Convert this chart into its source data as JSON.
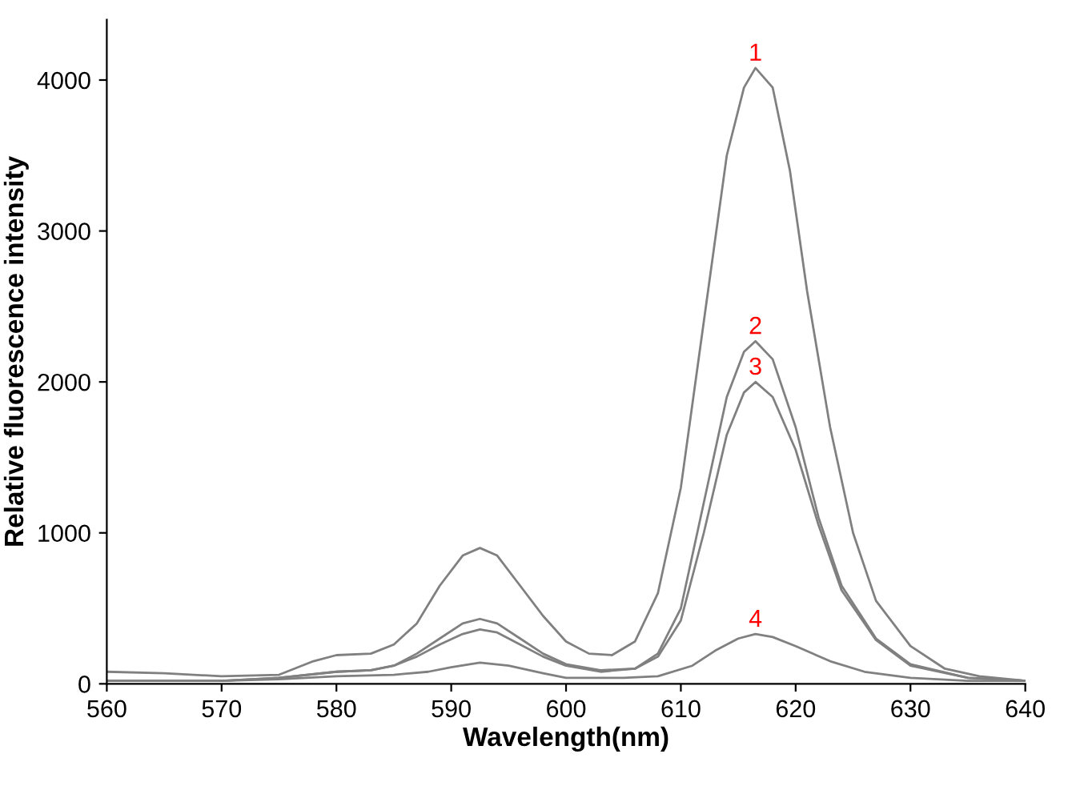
{
  "chart_data": {
    "type": "line",
    "xlabel": "Wavelength(nm)",
    "ylabel": "Relative fluorescence intensity",
    "xlim": [
      560,
      640
    ],
    "xticks": [
      560,
      570,
      580,
      590,
      600,
      610,
      620,
      630,
      640
    ],
    "ylim": [
      0,
      4400
    ],
    "yticks": [
      0,
      1000,
      2000,
      3000,
      4000
    ],
    "grid": false,
    "legend": false,
    "marker": "none",
    "line_style": "solid",
    "series": [
      {
        "name": "1",
        "color": "#808080",
        "x": [
          560,
          565,
          570,
          575,
          578,
          580,
          583,
          585,
          587,
          589,
          591,
          592.5,
          594,
          596,
          598,
          600,
          602,
          604,
          606,
          608,
          610,
          612,
          614,
          615.5,
          616.5,
          618,
          619.5,
          621,
          623,
          625,
          627,
          630,
          633,
          636,
          640
        ],
        "values": [
          80,
          70,
          50,
          60,
          150,
          190,
          200,
          260,
          400,
          650,
          850,
          900,
          850,
          650,
          450,
          280,
          200,
          190,
          280,
          600,
          1300,
          2400,
          3500,
          3950,
          4080,
          3950,
          3400,
          2600,
          1700,
          1000,
          550,
          250,
          100,
          50,
          20
        ]
      },
      {
        "name": "2",
        "color": "#808080",
        "x": [
          560,
          570,
          575,
          580,
          583,
          585,
          587,
          589,
          591,
          592.5,
          594,
          596,
          598,
          600,
          603,
          606,
          608,
          610,
          612,
          614,
          615.5,
          616.5,
          618,
          620,
          622,
          624,
          627,
          630,
          635,
          640
        ],
        "values": [
          20,
          20,
          40,
          80,
          90,
          120,
          200,
          300,
          400,
          430,
          400,
          300,
          200,
          130,
          90,
          100,
          200,
          500,
          1200,
          1900,
          2200,
          2270,
          2150,
          1700,
          1100,
          650,
          300,
          130,
          40,
          20
        ]
      },
      {
        "name": "3",
        "color": "#808080",
        "x": [
          560,
          570,
          575,
          580,
          583,
          585,
          587,
          589,
          591,
          592.5,
          594,
          596,
          598,
          600,
          603,
          606,
          608,
          610,
          612,
          614,
          615.5,
          616.5,
          618,
          620,
          622,
          624,
          627,
          630,
          635,
          640
        ],
        "values": [
          20,
          20,
          40,
          80,
          90,
          120,
          180,
          260,
          330,
          360,
          340,
          260,
          180,
          120,
          80,
          100,
          180,
          420,
          1000,
          1650,
          1930,
          2000,
          1900,
          1550,
          1050,
          620,
          290,
          120,
          40,
          20
        ]
      },
      {
        "name": "4",
        "color": "#808080",
        "x": [
          560,
          570,
          575,
          580,
          585,
          588,
          590,
          592.5,
          595,
          598,
          600,
          605,
          608,
          611,
          613,
          615,
          616.5,
          618,
          620,
          623,
          626,
          630,
          635,
          640
        ],
        "values": [
          20,
          20,
          30,
          50,
          60,
          80,
          110,
          140,
          120,
          70,
          40,
          40,
          50,
          120,
          220,
          300,
          330,
          310,
          250,
          150,
          80,
          40,
          20,
          20
        ]
      }
    ]
  }
}
